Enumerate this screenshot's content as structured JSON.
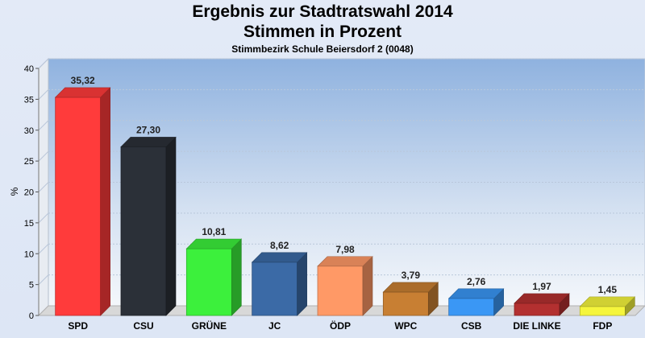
{
  "title": "Ergebnis zur Stadtratswahl 2014",
  "subtitle": "Stimmen in Prozent",
  "district": "Stimmbezirk Schule Beiersdorf 2 (0048)",
  "chart_data": {
    "type": "bar",
    "title": "Ergebnis zur Stadtratswahl 2014",
    "subtitle": "Stimmen in Prozent",
    "caption": "Stimmbezirk Schule Beiersdorf 2 (0048)",
    "ylabel": "%",
    "xlabel": "",
    "ylim": [
      0,
      40
    ],
    "yticks": [
      0,
      5,
      10,
      15,
      20,
      25,
      30,
      35,
      40
    ],
    "grid": true,
    "legend": "none",
    "categories": [
      "SPD",
      "CSU",
      "GRÜNE",
      "JC",
      "ÖDP",
      "WPC",
      "CSB",
      "DIE LINKE",
      "FDP"
    ],
    "values": [
      35.32,
      27.3,
      10.81,
      8.62,
      7.98,
      3.79,
      2.76,
      1.97,
      1.45
    ],
    "labels": [
      "35,32",
      "27,30",
      "10,81",
      "8,62",
      "7,98",
      "3,79",
      "2,76",
      "1,97",
      "1,45"
    ],
    "colors": [
      "#ff3b3b",
      "#2b3038",
      "#3cf03c",
      "#3b6aa6",
      "#ff9966",
      "#c87f33",
      "#3a97f5",
      "#b33030",
      "#f5f53c"
    ]
  }
}
